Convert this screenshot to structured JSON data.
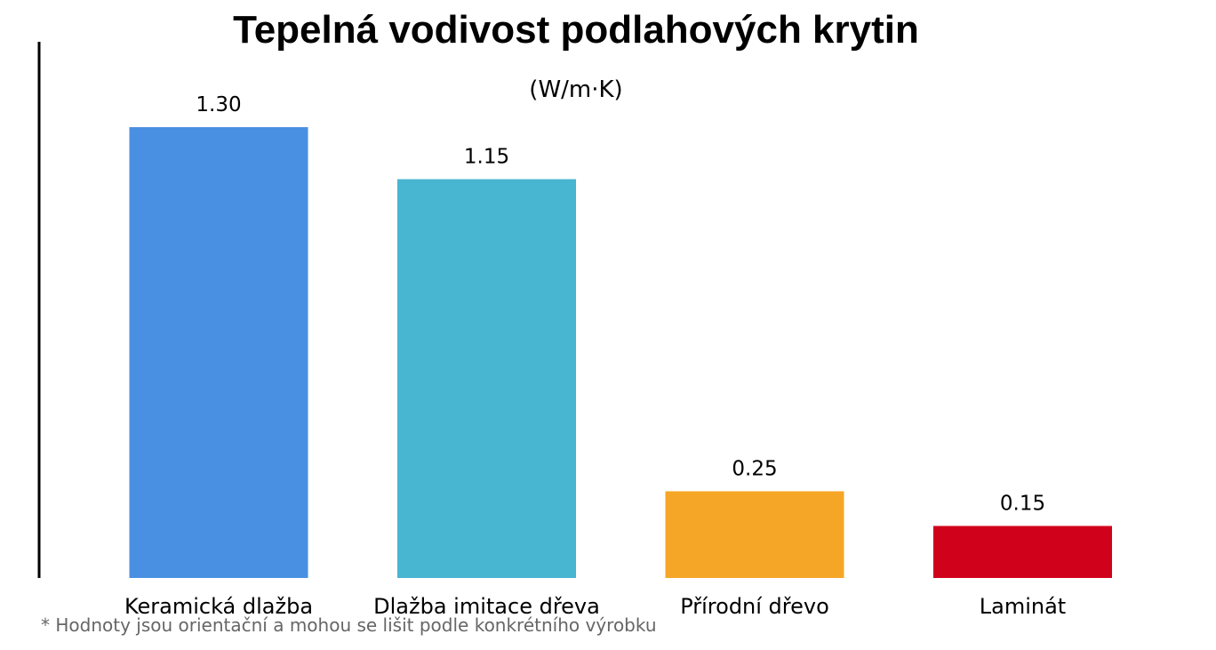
{
  "chart_data": {
    "type": "bar",
    "title": "Tepelná vodivost podlahových krytin",
    "subtitle": "(W/m·K)",
    "categories": [
      "Keramická dlažba",
      "Dlažba imitace dřeva",
      "Přírodní dřevo",
      "Laminát"
    ],
    "values": [
      1.3,
      1.15,
      0.25,
      0.15
    ],
    "value_labels": [
      "1.30",
      "1.15",
      "0.25",
      "0.15"
    ],
    "colors": [
      "#4A90E2",
      "#48B5D1",
      "#F5A627",
      "#D0021B"
    ],
    "ylim": [
      0,
      1.45
    ],
    "grid": false,
    "xlabel": "",
    "ylabel": "",
    "footnote": "* Hodnoty jsou orientační a mohou se lišit podle konkrétního výrobku"
  }
}
